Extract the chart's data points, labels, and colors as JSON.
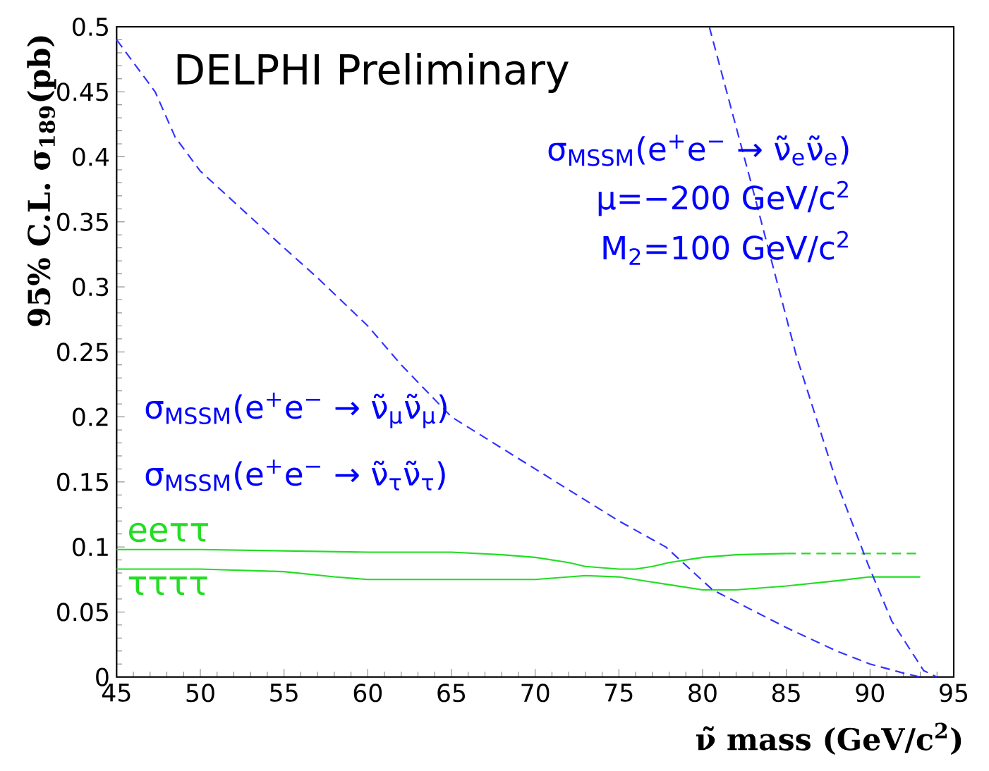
{
  "chart_data": {
    "type": "line",
    "title": "DELPHI Preliminary",
    "xlabel": "ν̃ mass (GeV/c$^{2}$)",
    "ylabel": "95% C.L. σ$_{189}$(pb)",
    "xlim": [
      45,
      95
    ],
    "ylim": [
      0,
      0.5
    ],
    "xticks": [
      45,
      50,
      55,
      60,
      65,
      70,
      75,
      80,
      85,
      90,
      95
    ],
    "yticks": [
      0,
      0.05,
      0.1,
      0.15,
      0.2,
      0.25,
      0.3,
      0.35,
      0.4,
      0.45,
      0.5
    ],
    "grid": false,
    "marker": "none",
    "series": [
      {
        "name": "eeττ",
        "color": "#22dd22",
        "line_style": "solid",
        "x": [
          45,
          50,
          55,
          60,
          65,
          68,
          70,
          72,
          73,
          75,
          76,
          77,
          78,
          80,
          82,
          85
        ],
        "values": [
          0.098,
          0.098,
          0.097,
          0.096,
          0.096,
          0.094,
          0.092,
          0.088,
          0.085,
          0.083,
          0.083,
          0.085,
          0.088,
          0.092,
          0.094,
          0.095
        ]
      },
      {
        "color": "#22dd22",
        "line_style": "dashed",
        "x": [
          85,
          93
        ],
        "values": [
          0.095,
          0.095
        ]
      },
      {
        "name": "ττττ",
        "color": "#22dd22",
        "line_style": "solid",
        "x": [
          45,
          50,
          55,
          58,
          60,
          65,
          70,
          73,
          75,
          77,
          78,
          80,
          82,
          85,
          88,
          90,
          93
        ],
        "values": [
          0.083,
          0.083,
          0.081,
          0.077,
          0.075,
          0.075,
          0.075,
          0.078,
          0.077,
          0.073,
          0.071,
          0.067,
          0.067,
          0.07,
          0.074,
          0.077,
          0.077
        ]
      },
      {
        "color": "#3333ff",
        "line_style": "dashed",
        "x": [
          45,
          47.3,
          48.5,
          50,
          55,
          57,
          60,
          62,
          65,
          70,
          75,
          77.8,
          80.6,
          85,
          88,
          90,
          92,
          93
        ],
        "values": [
          0.49,
          0.45,
          0.415,
          0.389,
          0.33,
          0.307,
          0.27,
          0.24,
          0.2,
          0.16,
          0.12,
          0.1,
          0.067,
          0.038,
          0.02,
          0.01,
          0.003,
          0
        ]
      },
      {
        "color": "#3333ff",
        "line_style": "dashed",
        "x": [
          80.4,
          83,
          85.6,
          88,
          89.9,
          91.3,
          93.2,
          94
        ],
        "values": [
          0.5,
          0.375,
          0.247,
          0.15,
          0.086,
          0.043,
          0.005,
          0
        ]
      }
    ],
    "annotations": [
      "σ$_{MSSM}$(e$^{+}$e$^{−}$ → ν̃$_{e}$ν̃$_{e}$)",
      "μ=−200 GeV/c$^{2}$",
      "M$_{2}$=100 GeV/c$^{2}$",
      "σ$_{MSSM}$(e$^{+}$e$^{−}$ → ν̃$_{μ}$ν̃$_{μ}$)",
      "σ$_{MSSM}$(e$^{+}$e$^{−}$ → ν̃$_{τ}$ν̃$_{τ}$)"
    ]
  }
}
